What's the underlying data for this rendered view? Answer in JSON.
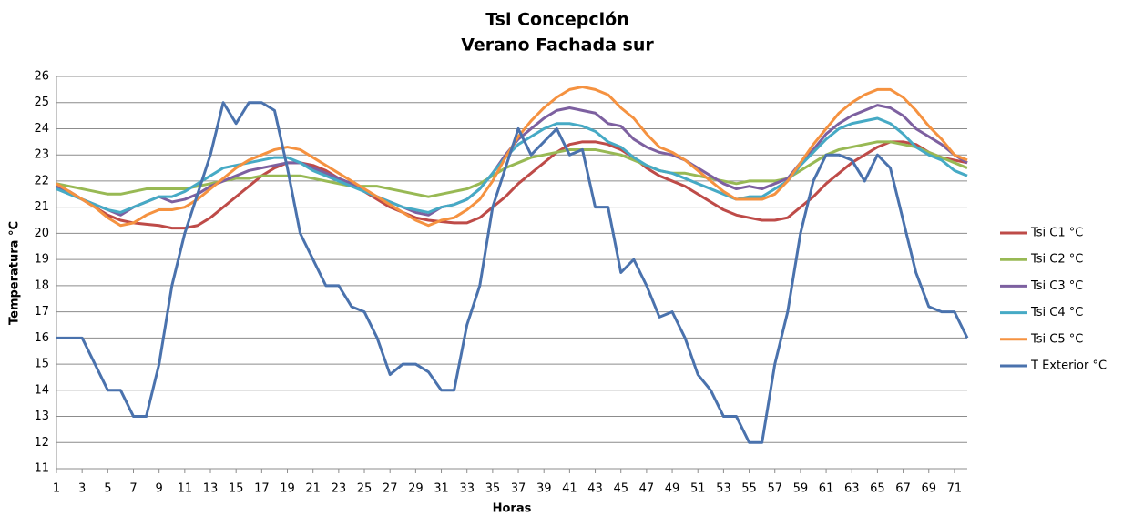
{
  "chart_data": {
    "type": "line",
    "title": "Tsi Concepción",
    "subtitle": "Verano Fachada sur",
    "x_label": "Horas",
    "y_label": "Temperatura °C",
    "x": [
      1,
      2,
      3,
      4,
      5,
      6,
      7,
      8,
      9,
      10,
      11,
      12,
      13,
      14,
      15,
      16,
      17,
      18,
      19,
      20,
      21,
      22,
      23,
      24,
      25,
      26,
      27,
      28,
      29,
      30,
      31,
      32,
      33,
      34,
      35,
      36,
      37,
      38,
      39,
      40,
      41,
      42,
      43,
      44,
      45,
      46,
      47,
      48,
      49,
      50,
      51,
      52,
      53,
      54,
      55,
      56,
      57,
      58,
      59,
      60,
      61,
      62,
      63,
      64,
      65,
      66,
      67,
      68,
      69,
      70,
      71,
      72
    ],
    "xlim": [
      1,
      72
    ],
    "xticks": [
      1,
      3,
      5,
      7,
      9,
      11,
      13,
      15,
      17,
      19,
      21,
      23,
      25,
      27,
      29,
      31,
      33,
      35,
      37,
      39,
      41,
      43,
      45,
      47,
      49,
      51,
      53,
      55,
      57,
      59,
      61,
      63,
      65,
      67,
      69,
      71
    ],
    "ylim": [
      11,
      26
    ],
    "yticks": [
      11,
      12,
      13,
      14,
      15,
      16,
      17,
      18,
      19,
      20,
      21,
      22,
      23,
      24,
      25,
      26
    ],
    "grid": true,
    "legend": "right",
    "series": [
      {
        "name": "Tsi C1 °C",
        "color": "#be4b48",
        "values": [
          21.8,
          21.6,
          21.3,
          21,
          20.7,
          20.5,
          20.4,
          20.35,
          20.3,
          20.2,
          20.2,
          20.3,
          20.6,
          21,
          21.4,
          21.8,
          22.2,
          22.5,
          22.7,
          22.7,
          22.6,
          22.4,
          22.1,
          21.9,
          21.6,
          21.3,
          21,
          20.8,
          20.6,
          20.5,
          20.45,
          20.4,
          20.4,
          20.6,
          21,
          21.4,
          21.9,
          22.3,
          22.7,
          23.1,
          23.4,
          23.5,
          23.5,
          23.4,
          23.2,
          22.9,
          22.5,
          22.2,
          22,
          21.8,
          21.5,
          21.2,
          20.9,
          20.7,
          20.6,
          20.5,
          20.5,
          20.6,
          21,
          21.4,
          21.9,
          22.3,
          22.7,
          23,
          23.3,
          23.5,
          23.5,
          23.4,
          23.1,
          22.9,
          22.8,
          22.7
        ]
      },
      {
        "name": "Tsi C2 °C",
        "color": "#98b954",
        "values": [
          21.9,
          21.8,
          21.7,
          21.6,
          21.5,
          21.5,
          21.6,
          21.7,
          21.7,
          21.7,
          21.7,
          21.8,
          21.9,
          22,
          22.1,
          22.1,
          22.2,
          22.2,
          22.2,
          22.2,
          22.1,
          22,
          21.9,
          21.8,
          21.8,
          21.8,
          21.7,
          21.6,
          21.5,
          21.4,
          21.5,
          21.6,
          21.7,
          21.9,
          22.2,
          22.5,
          22.7,
          22.9,
          23,
          23.1,
          23.2,
          23.2,
          23.2,
          23.1,
          23,
          22.8,
          22.6,
          22.4,
          22.3,
          22.3,
          22.2,
          22.1,
          22,
          21.9,
          22,
          22,
          22,
          22.1,
          22.4,
          22.7,
          23,
          23.2,
          23.3,
          23.4,
          23.5,
          23.5,
          23.4,
          23.3,
          23.1,
          22.9,
          22.7,
          22.5
        ]
      },
      {
        "name": "Tsi C3 °C",
        "color": "#7d60a0",
        "values": [
          21.8,
          21.6,
          21.3,
          21.1,
          20.9,
          20.7,
          21,
          21.2,
          21.4,
          21.2,
          21.3,
          21.5,
          21.8,
          22,
          22.2,
          22.4,
          22.5,
          22.6,
          22.7,
          22.7,
          22.5,
          22.3,
          22.1,
          21.9,
          21.6,
          21.4,
          21.2,
          21,
          20.8,
          20.7,
          21,
          21.1,
          21.3,
          21.7,
          22.3,
          23,
          23.6,
          24,
          24.4,
          24.7,
          24.8,
          24.7,
          24.6,
          24.2,
          24.1,
          23.6,
          23.3,
          23.1,
          23,
          22.8,
          22.5,
          22.2,
          21.9,
          21.7,
          21.8,
          21.7,
          21.9,
          22.1,
          22.7,
          23.2,
          23.8,
          24.2,
          24.5,
          24.7,
          24.9,
          24.8,
          24.5,
          24,
          23.7,
          23.4,
          23,
          22.7
        ]
      },
      {
        "name": "Tsi C4 °C",
        "color": "#46aac5",
        "values": [
          21.7,
          21.5,
          21.3,
          21.1,
          20.9,
          20.8,
          21,
          21.2,
          21.4,
          21.4,
          21.6,
          21.9,
          22.2,
          22.5,
          22.6,
          22.7,
          22.8,
          22.9,
          22.9,
          22.7,
          22.4,
          22.2,
          22,
          21.8,
          21.6,
          21.4,
          21.2,
          21,
          20.9,
          20.8,
          21,
          21.1,
          21.3,
          21.7,
          22.3,
          22.9,
          23.4,
          23.7,
          24,
          24.2,
          24.2,
          24.1,
          23.9,
          23.5,
          23.3,
          22.9,
          22.6,
          22.4,
          22.3,
          22.1,
          21.9,
          21.7,
          21.5,
          21.3,
          21.4,
          21.4,
          21.7,
          22,
          22.6,
          23.1,
          23.6,
          24,
          24.2,
          24.3,
          24.4,
          24.2,
          23.8,
          23.3,
          23,
          22.8,
          22.4,
          22.2
        ]
      },
      {
        "name": "Tsi C5 °C",
        "color": "#f59240",
        "values": [
          21.9,
          21.6,
          21.3,
          21,
          20.6,
          20.3,
          20.4,
          20.7,
          20.9,
          20.9,
          21,
          21.3,
          21.7,
          22.1,
          22.5,
          22.8,
          23,
          23.2,
          23.3,
          23.2,
          22.9,
          22.6,
          22.3,
          22,
          21.7,
          21.4,
          21.1,
          20.8,
          20.5,
          20.3,
          20.5,
          20.6,
          20.9,
          21.3,
          22,
          22.9,
          23.7,
          24.3,
          24.8,
          25.2,
          25.5,
          25.6,
          25.5,
          25.3,
          24.8,
          24.4,
          23.8,
          23.3,
          23.1,
          22.8,
          22.4,
          22,
          21.6,
          21.3,
          21.3,
          21.3,
          21.5,
          22,
          22.7,
          23.4,
          24,
          24.6,
          25,
          25.3,
          25.5,
          25.5,
          25.2,
          24.7,
          24.1,
          23.6,
          23,
          22.8
        ]
      },
      {
        "name": "T Exterior °C",
        "color": "#4a72ad",
        "values": [
          16,
          16,
          16,
          15,
          14,
          14,
          13,
          13,
          15,
          18,
          20,
          21.5,
          23,
          25,
          24.2,
          25,
          25,
          24.7,
          22.5,
          20,
          19,
          18,
          18,
          17.2,
          17,
          16,
          14.6,
          15,
          15,
          14.7,
          14,
          14,
          16.5,
          18,
          21,
          22.5,
          24,
          23,
          23.5,
          24,
          23,
          23.2,
          21,
          21,
          18.5,
          19,
          18,
          16.8,
          17,
          16,
          14.6,
          14,
          13,
          13,
          12,
          12,
          15,
          17,
          20,
          22,
          23,
          23,
          22.8,
          22,
          23,
          22.5,
          20.5,
          18.5,
          17.2,
          17,
          17,
          16
        ]
      }
    ]
  }
}
